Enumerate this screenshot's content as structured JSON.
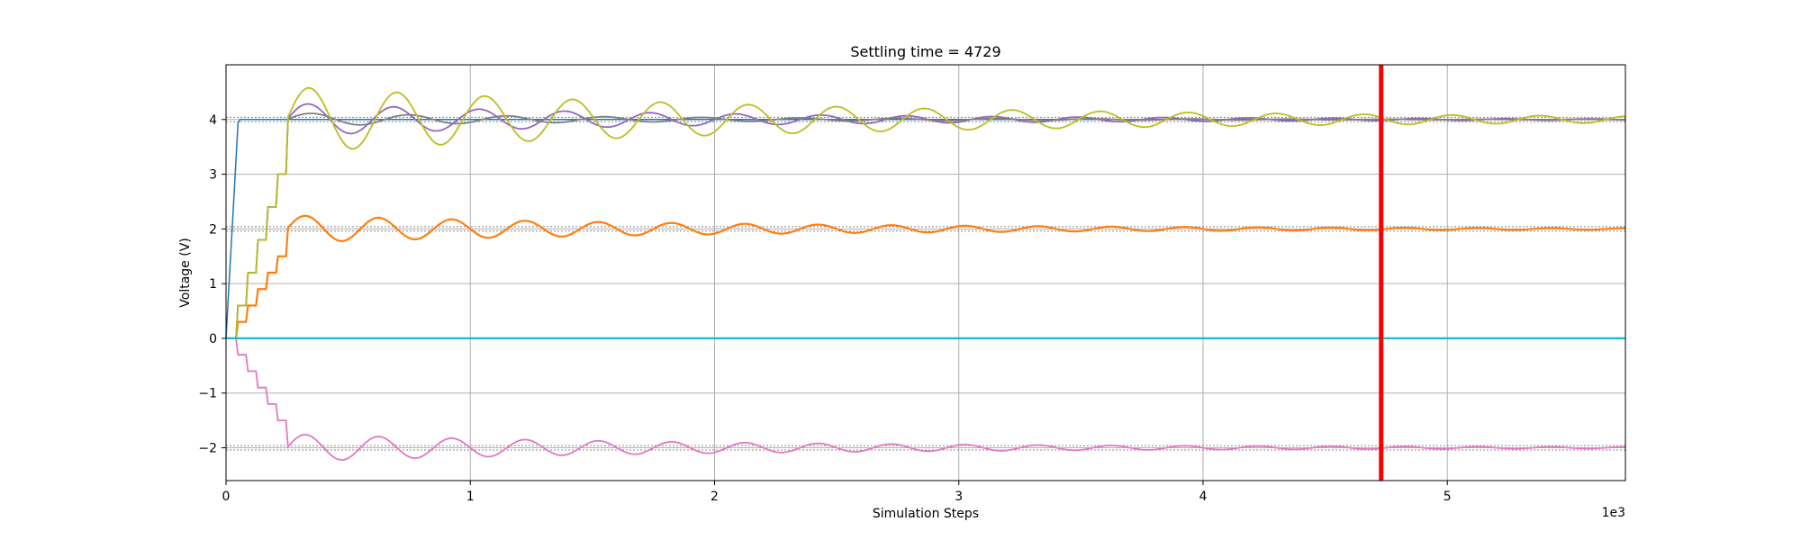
{
  "chart_data": {
    "type": "line",
    "title": "Settling time = 4729",
    "xlabel": "Simulation Steps",
    "ylabel": "Voltage (V)",
    "x_offset_label": "1e3",
    "xlim": [
      0,
      5729
    ],
    "ylim": [
      -2.6,
      5.0
    ],
    "xticks": [
      0,
      1000,
      2000,
      3000,
      4000,
      5000
    ],
    "xtick_labels": [
      "0",
      "1",
      "2",
      "3",
      "4",
      "5"
    ],
    "yticks": [
      -2,
      -1,
      0,
      1,
      2,
      3,
      4
    ],
    "ytick_labels": [
      "−2",
      "−1",
      "0",
      "1",
      "2",
      "3",
      "4"
    ],
    "grid": true,
    "settling_time": 4729,
    "settling_line_color": "#ff0000",
    "tolerance_bands": [
      {
        "center": 4,
        "lower": 3.96,
        "upper": 4.04
      },
      {
        "center": 2,
        "lower": 1.96,
        "upper": 2.04
      },
      {
        "center": -2,
        "lower": -2.04,
        "upper": -1.96
      }
    ],
    "series": [
      {
        "color": "#1f77b4",
        "target": 4,
        "kind": "step",
        "rise_end": 50,
        "start": 0,
        "width": 1.5
      },
      {
        "color": "#ff7f0e",
        "target": 2,
        "kind": "osc",
        "start": 0,
        "amp": 0.25,
        "period": 300,
        "decay": 1900,
        "width": 2.2
      },
      {
        "color": "#2ca02c",
        "target": 0,
        "kind": "flat",
        "width": 1.5
      },
      {
        "color": "#d62728",
        "target": 0,
        "kind": "flat",
        "width": 1.5
      },
      {
        "color": "#9467bd",
        "target": 4,
        "kind": "osc",
        "start": 0,
        "amp": 0.3,
        "period": 350,
        "decay": 1700,
        "width": 1.8
      },
      {
        "color": "#8c564b",
        "target": 0,
        "kind": "flat",
        "width": 1.5
      },
      {
        "color": "#e377c2",
        "target": -2,
        "kind": "osc",
        "start": 0,
        "amp": 0.25,
        "period": 300,
        "decay": 1900,
        "width": 1.8
      },
      {
        "color": "#7f7f7f",
        "target": 4,
        "kind": "osc",
        "start": 0,
        "amp": 0.12,
        "period": 400,
        "decay": 1500,
        "width": 1.8
      },
      {
        "color": "#bcbd22",
        "target": 4,
        "kind": "osc",
        "start": 0,
        "amp": 0.6,
        "period": 360,
        "decay": 2400,
        "width": 1.8
      },
      {
        "color": "#17becf",
        "target": 0,
        "kind": "flat",
        "width": 2.2
      }
    ]
  }
}
